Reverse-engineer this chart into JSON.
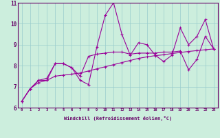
{
  "xlabel": "Windchill (Refroidissement éolien,°C)",
  "x_values": [
    0,
    1,
    2,
    3,
    4,
    5,
    6,
    7,
    8,
    9,
    10,
    11,
    12,
    13,
    14,
    15,
    16,
    17,
    18,
    19,
    20,
    21,
    22,
    23
  ],
  "line1": [
    6.3,
    6.9,
    7.3,
    7.3,
    8.1,
    8.1,
    7.9,
    7.3,
    7.1,
    8.9,
    10.4,
    11.0,
    9.5,
    8.5,
    9.1,
    9.0,
    8.5,
    8.2,
    8.5,
    9.8,
    9.0,
    9.4,
    10.2,
    8.8
  ],
  "line2": [
    6.3,
    6.9,
    7.3,
    7.4,
    8.1,
    8.1,
    7.9,
    7.5,
    8.45,
    8.55,
    8.6,
    8.65,
    8.65,
    8.55,
    8.6,
    8.6,
    8.6,
    8.65,
    8.65,
    8.7,
    7.8,
    8.3,
    9.4,
    8.8
  ],
  "line3": [
    6.3,
    6.9,
    7.2,
    7.3,
    7.5,
    7.55,
    7.6,
    7.65,
    7.75,
    7.85,
    7.95,
    8.05,
    8.15,
    8.25,
    8.35,
    8.42,
    8.48,
    8.52,
    8.58,
    8.63,
    8.68,
    8.72,
    8.76,
    8.8
  ],
  "ylim": [
    6,
    11
  ],
  "yticks": [
    6,
    7,
    8,
    9,
    10,
    11
  ],
  "line_color": "#990099",
  "bg_color": "#cceedd",
  "grid_color": "#99cccc",
  "axes_color": "#660066",
  "spine_color": "#660066"
}
